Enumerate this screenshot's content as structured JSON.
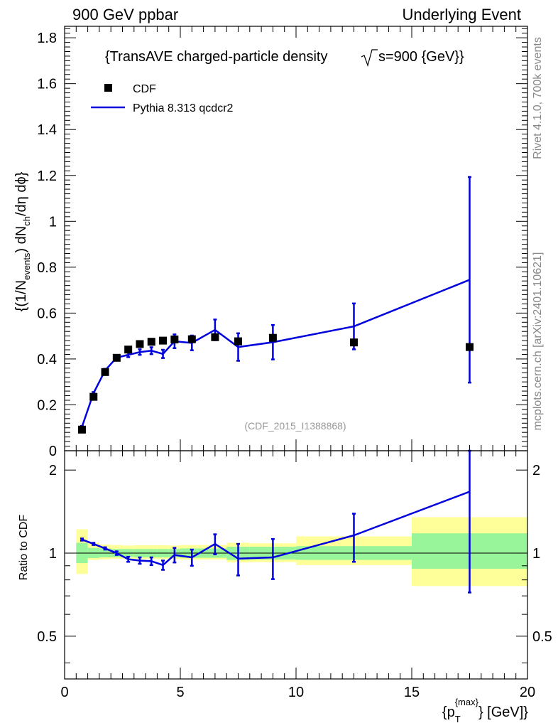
{
  "header": {
    "left": "900 GeV ppbar",
    "right": "Underlying Event"
  },
  "side": {
    "top": "Rivet 4.1.0,  700k events",
    "bottom": "mcplots.cern.ch [arXiv:2401.10621]"
  },
  "chart_data": [
    {
      "type": "scatter",
      "title": "{TransAVE charged-particle density",
      "title_sqrt": "s=900 {GeV}}",
      "watermark": "(CDF_2015_I1388868)",
      "ylabel": "{(1/N",
      "ylabel_sub": "events",
      "ylabel_mid": ") dN",
      "ylabel_sub2": "ch",
      "ylabel_end": "/dη dϕ}",
      "xlim": [
        0,
        20
      ],
      "ylim": [
        0,
        1.85
      ],
      "yticks": [
        0,
        0.2,
        0.4,
        0.6,
        0.8,
        1,
        1.2,
        1.4,
        1.6,
        1.8
      ],
      "ytick_labels": [
        "0",
        "0.2",
        "0.4",
        "0.6",
        "0.8",
        "1",
        "1.2",
        "1.4",
        "1.6",
        "1.8"
      ],
      "legend": [
        {
          "name": "CDF",
          "marker": "square",
          "color": "#000000"
        },
        {
          "name": "Pythia 8.313 qcdcr2",
          "marker": "line",
          "color": "#0000dd"
        }
      ],
      "series": [
        {
          "name": "CDF",
          "x": [
            0.75,
            1.25,
            1.75,
            2.25,
            2.75,
            3.25,
            3.75,
            4.25,
            4.75,
            5.5,
            6.5,
            7.5,
            9.0,
            12.5,
            17.5
          ],
          "values": [
            0.092,
            0.235,
            0.343,
            0.405,
            0.441,
            0.465,
            0.475,
            0.48,
            0.485,
            0.486,
            0.495,
            0.477,
            0.492,
            0.472,
            0.452
          ],
          "yerr": [
            0.003,
            0.004,
            0.006,
            0.007,
            0.008,
            0.009,
            0.009,
            0.01,
            0.01,
            0.01,
            0.011,
            0.011,
            0.013,
            0.015,
            0.02
          ]
        },
        {
          "name": "Pythia 8.313 qcdcr2",
          "x": [
            0.75,
            1.25,
            1.75,
            2.25,
            2.75,
            3.25,
            3.75,
            4.25,
            4.75,
            5.5,
            6.5,
            7.5,
            9.0,
            12.5,
            17.5
          ],
          "values": [
            0.104,
            0.251,
            0.35,
            0.406,
            0.418,
            0.43,
            0.436,
            0.422,
            0.477,
            0.47,
            0.527,
            0.452,
            0.473,
            0.542,
            0.745
          ],
          "yerr": [
            0.004,
            0.005,
            0.007,
            0.008,
            0.01,
            0.012,
            0.015,
            0.018,
            0.03,
            0.032,
            0.045,
            0.06,
            0.075,
            0.1,
            0.448
          ]
        }
      ]
    },
    {
      "type": "line",
      "ylabel": "Ratio to CDF",
      "xlabel": "{p",
      "xlabel_sup": "{max}",
      "xlabel_sub": "T",
      "xlabel_end": "} [GeV]}",
      "xlim": [
        0,
        20
      ],
      "ylim": [
        0.35,
        2.35
      ],
      "yscale": "log",
      "xticks": [
        0,
        5,
        10,
        15,
        20
      ],
      "xtick_labels": [
        "0",
        "5",
        "10",
        "15",
        "20"
      ],
      "yticks": [
        0.5,
        1,
        2
      ],
      "ytick_labels": [
        "0.5",
        "1",
        "2"
      ],
      "bands": {
        "edges": [
          0.5,
          1.0,
          1.5,
          2.0,
          2.5,
          3.0,
          3.5,
          4.0,
          4.5,
          5.0,
          6.0,
          7.0,
          8.0,
          10.0,
          15.0,
          20.0
        ],
        "inner": [
          [
            0.92,
            1.09
          ],
          [
            0.96,
            1.045
          ],
          [
            0.965,
            1.04
          ],
          [
            0.967,
            1.035
          ],
          [
            0.968,
            1.035
          ],
          [
            0.965,
            1.035
          ],
          [
            0.965,
            1.035
          ],
          [
            0.965,
            1.035
          ],
          [
            0.965,
            1.035
          ],
          [
            0.962,
            1.04
          ],
          [
            0.962,
            1.04
          ],
          [
            0.945,
            1.055
          ],
          [
            0.948,
            1.055
          ],
          [
            0.945,
            1.06
          ],
          [
            0.878,
            1.18
          ]
        ],
        "outer": [
          [
            0.84,
            1.22
          ],
          [
            0.945,
            1.09
          ],
          [
            0.95,
            1.075
          ],
          [
            0.955,
            1.07
          ],
          [
            0.955,
            1.065
          ],
          [
            0.952,
            1.068
          ],
          [
            0.952,
            1.068
          ],
          [
            0.952,
            1.068
          ],
          [
            0.952,
            1.065
          ],
          [
            0.948,
            1.07
          ],
          [
            0.948,
            1.07
          ],
          [
            0.925,
            1.09
          ],
          [
            0.928,
            1.085
          ],
          [
            0.905,
            1.15
          ],
          [
            0.76,
            1.35
          ]
        ],
        "inner_color": "#99f599",
        "outer_color": "#ffff99"
      },
      "series": [
        {
          "name": "Pythia 8.313 qcdcr2",
          "x": [
            0.75,
            1.25,
            1.75,
            2.25,
            2.75,
            3.25,
            3.75,
            4.25,
            4.75,
            5.5,
            6.5,
            7.5,
            9.0,
            12.5,
            17.5
          ],
          "values": [
            1.12,
            1.08,
            1.04,
            1.0,
            0.95,
            0.94,
            0.935,
            0.905,
            0.985,
            0.965,
            1.08,
            0.955,
            0.965,
            1.16,
            1.67
          ],
          "yerr": [
            0.01,
            0.01,
            0.01,
            0.015,
            0.02,
            0.025,
            0.03,
            0.035,
            0.06,
            0.065,
            0.09,
            0.125,
            0.16,
            0.23,
            0.95
          ]
        }
      ]
    }
  ]
}
